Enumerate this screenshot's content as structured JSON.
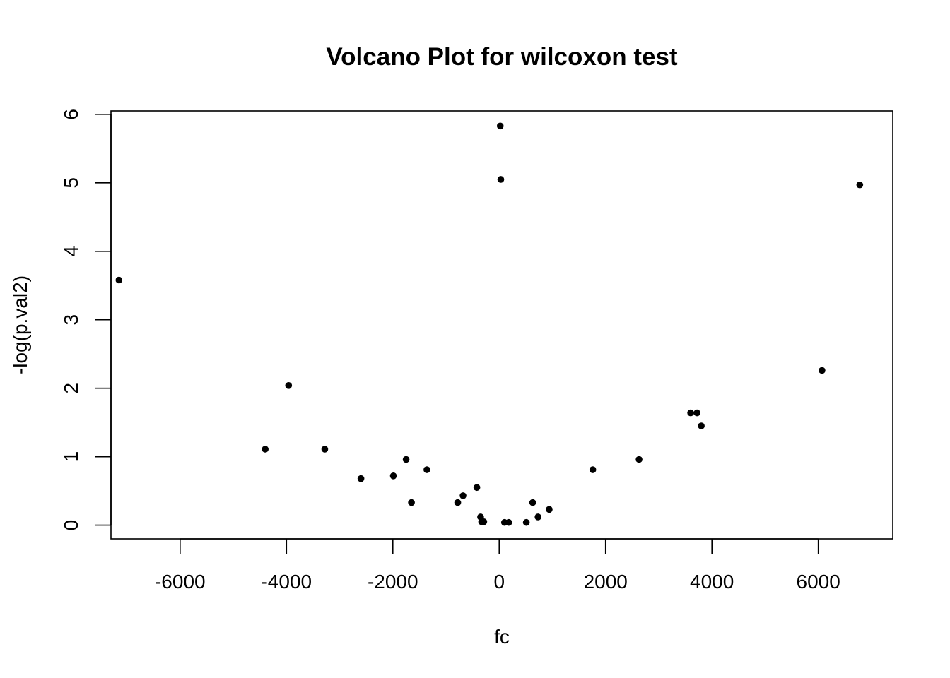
{
  "chart_data": {
    "type": "scatter",
    "title": "Volcano Plot for wilcoxon test",
    "xlabel": "fc",
    "ylabel": "-log(p.val2)",
    "xlim": [
      -7300,
      7400
    ],
    "ylim": [
      -0.2,
      6.05
    ],
    "x_ticks": [
      -6000,
      -4000,
      -2000,
      0,
      2000,
      4000,
      6000
    ],
    "y_ticks": [
      0,
      1,
      2,
      3,
      4,
      5,
      6
    ],
    "x_tick_labels": [
      "-6000",
      "-4000",
      "-2000",
      "0",
      "2000",
      "4000",
      "6000"
    ],
    "y_tick_labels": [
      "0",
      "1",
      "2",
      "3",
      "4",
      "5",
      "6"
    ],
    "grid": false,
    "color": "#000000",
    "points": [
      {
        "x": 20,
        "y": 5.83
      },
      {
        "x": 30,
        "y": 5.05
      },
      {
        "x": 6780,
        "y": 4.97
      },
      {
        "x": -7150,
        "y": 3.58
      },
      {
        "x": 6070,
        "y": 2.26
      },
      {
        "x": -3960,
        "y": 2.04
      },
      {
        "x": 3600,
        "y": 1.64
      },
      {
        "x": 3720,
        "y": 1.64
      },
      {
        "x": 3800,
        "y": 1.45
      },
      {
        "x": -4400,
        "y": 1.11
      },
      {
        "x": -3280,
        "y": 1.11
      },
      {
        "x": -1750,
        "y": 0.96
      },
      {
        "x": 2630,
        "y": 0.96
      },
      {
        "x": -1360,
        "y": 0.81
      },
      {
        "x": 1760,
        "y": 0.81
      },
      {
        "x": -1990,
        "y": 0.72
      },
      {
        "x": -2600,
        "y": 0.68
      },
      {
        "x": -420,
        "y": 0.55
      },
      {
        "x": -680,
        "y": 0.43
      },
      {
        "x": -1650,
        "y": 0.33
      },
      {
        "x": -780,
        "y": 0.33
      },
      {
        "x": 630,
        "y": 0.33
      },
      {
        "x": 940,
        "y": 0.23
      },
      {
        "x": -350,
        "y": 0.12
      },
      {
        "x": 730,
        "y": 0.12
      },
      {
        "x": -330,
        "y": 0.05
      },
      {
        "x": -290,
        "y": 0.05
      },
      {
        "x": 100,
        "y": 0.04
      },
      {
        "x": 180,
        "y": 0.04
      },
      {
        "x": 510,
        "y": 0.04
      }
    ]
  }
}
